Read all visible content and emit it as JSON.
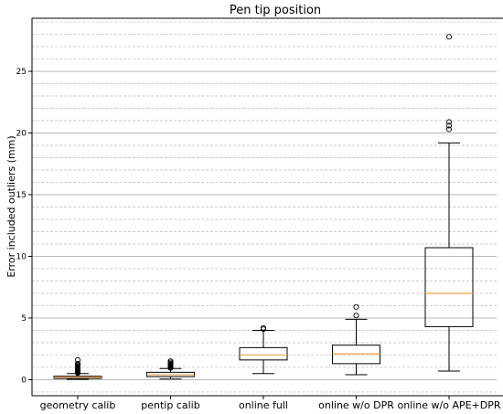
{
  "chart_data": {
    "type": "box",
    "title": "Pen tip position",
    "xlabel": "",
    "ylabel": "Error included outliers (mm)",
    "ylim": [
      -1.3,
      29.3
    ],
    "yticks": [
      0,
      5,
      10,
      15,
      20,
      25
    ],
    "ytick_labels": [
      "0",
      "5",
      "10",
      "15",
      "20",
      "25"
    ],
    "grid": {
      "major": "solid",
      "minor": "dashed",
      "minor_step": 1
    },
    "colors": {
      "box": "#000000",
      "median": "#f0a050",
      "grid_major": "#b0b0b0",
      "grid_minor": "#b8b8b8"
    },
    "categories": [
      "geometry calib",
      "pentip calib",
      "online full",
      "online w/o DPR",
      "online w/o APE+DPR"
    ],
    "boxes": [
      {
        "label": "geometry calib",
        "whislo": 0.02,
        "q1": 0.1,
        "med": 0.18,
        "q3": 0.28,
        "whishi": 0.5,
        "fliers": [
          0.55,
          0.6,
          0.65,
          0.7,
          0.75,
          0.8,
          0.85,
          0.9,
          0.95,
          1.0,
          1.05,
          1.1,
          1.2,
          1.3,
          1.6
        ]
      },
      {
        "label": "pentip calib",
        "whislo": 0.05,
        "q1": 0.25,
        "med": 0.4,
        "q3": 0.6,
        "whishi": 0.9,
        "fliers": [
          0.95,
          1.0,
          1.05,
          1.1,
          1.15,
          1.2,
          1.25,
          1.3,
          1.4,
          1.5
        ]
      },
      {
        "label": "online full",
        "whislo": 0.5,
        "q1": 1.6,
        "med": 2.0,
        "q3": 2.6,
        "whishi": 4.0,
        "fliers": [
          4.1,
          4.2
        ]
      },
      {
        "label": "online w/o DPR",
        "whislo": 0.4,
        "q1": 1.3,
        "med": 2.1,
        "q3": 2.8,
        "whishi": 4.9,
        "fliers": [
          5.2,
          5.9
        ]
      },
      {
        "label": "online w/o APE+DPR",
        "whislo": 0.7,
        "q1": 4.3,
        "med": 7.0,
        "q3": 10.7,
        "whishi": 19.2,
        "fliers": [
          20.3,
          20.6,
          20.9,
          27.8
        ]
      }
    ]
  }
}
